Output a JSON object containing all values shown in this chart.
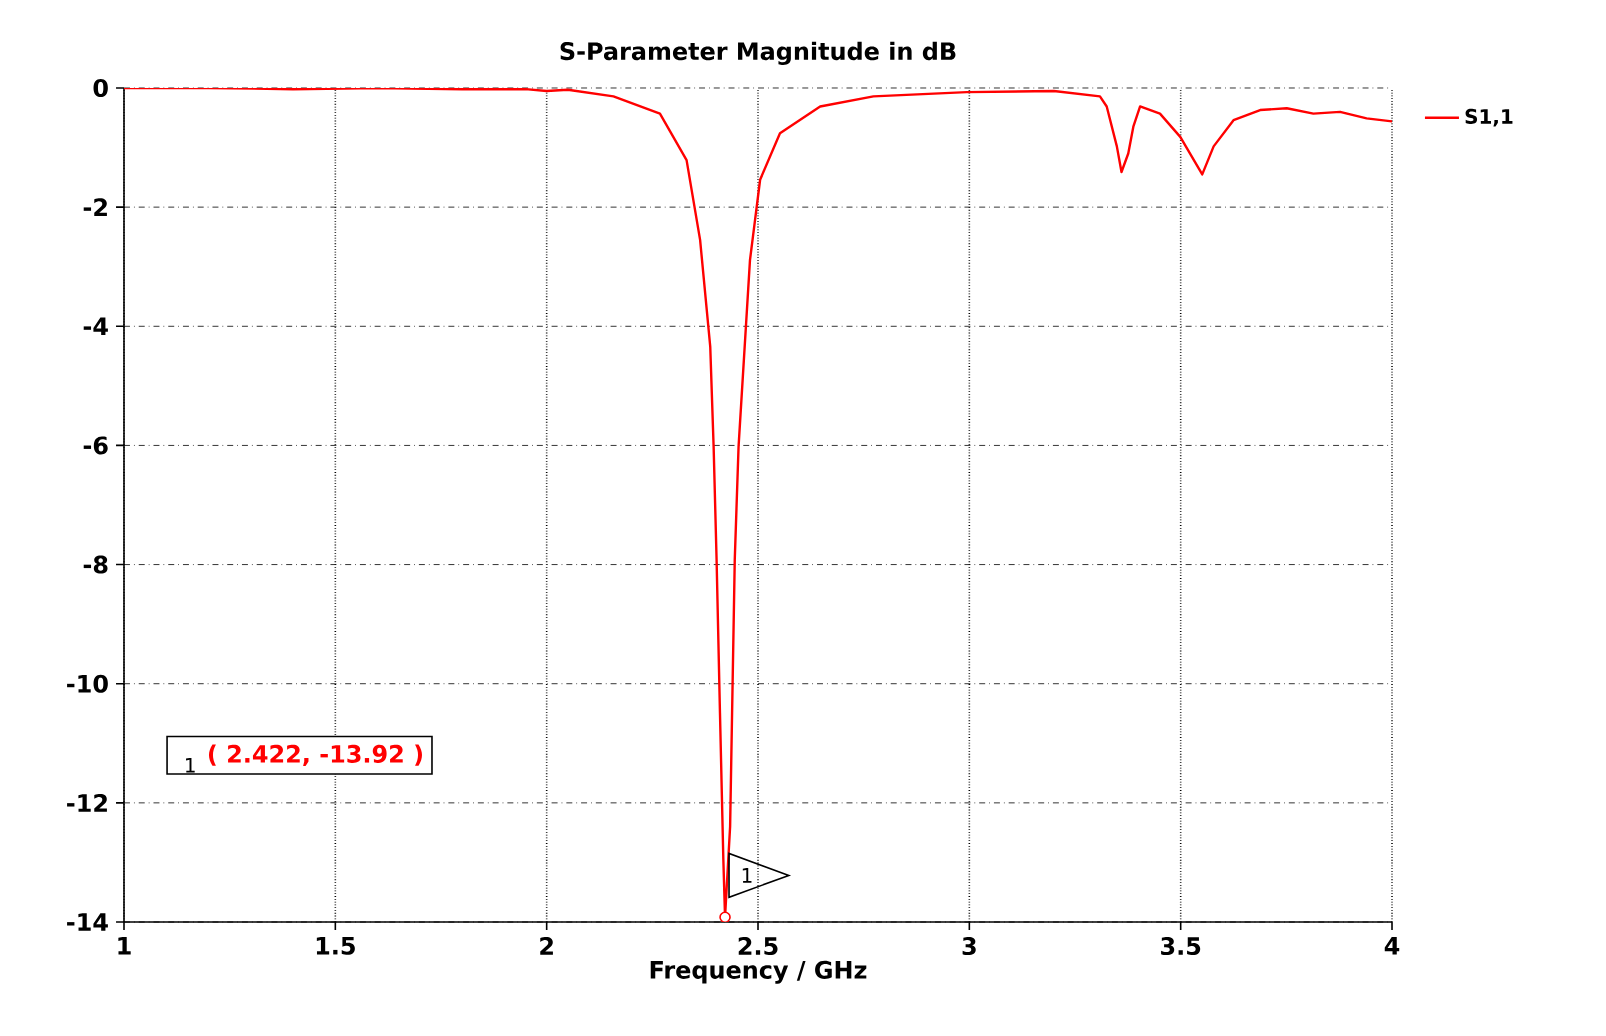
{
  "chart_data": {
    "type": "line",
    "title": "S-Parameter Magnitude in dB",
    "xlabel": "Frequency / GHz",
    "xlim": [
      1,
      4
    ],
    "ylim": [
      -14,
      0
    ],
    "xticks": [
      1,
      1.5,
      2,
      2.5,
      3,
      3.5,
      4
    ],
    "yticks": [
      0,
      -2,
      -4,
      -6,
      -8,
      -10,
      -12,
      -14
    ],
    "grid": true,
    "legend": "top right",
    "marker": "none",
    "line_style": "solid",
    "series": [
      {
        "name": "S1,1",
        "color": "#ff0000",
        "x": [
          1,
          1.2,
          1.4,
          1.6,
          1.8,
          1.95,
          2.0,
          2.05,
          2.158,
          2.268,
          2.331,
          2.363,
          2.387,
          2.395,
          2.402,
          2.41,
          2.418,
          2.422,
          2.434,
          2.445,
          2.454,
          2.481,
          2.505,
          2.552,
          2.647,
          2.773,
          2.994,
          3.2,
          3.309,
          3.325,
          3.349,
          3.36,
          3.376,
          3.388,
          3.404,
          3.451,
          3.499,
          3.551,
          3.578,
          3.625,
          3.688,
          3.751,
          3.814,
          3.877,
          3.94,
          4.0
        ],
        "values": [
          0,
          0,
          -0.02,
          0,
          -0.02,
          -0.02,
          -0.05,
          -0.03,
          -0.14,
          -0.43,
          -1.21,
          -2.55,
          -4.34,
          -6.02,
          -7.92,
          -10.49,
          -12.95,
          -13.92,
          -12.4,
          -7.92,
          -6.02,
          -2.89,
          -1.54,
          -0.76,
          -0.31,
          -0.14,
          -0.07,
          -0.05,
          -0.14,
          -0.31,
          -0.98,
          -1.41,
          -1.1,
          -0.65,
          -0.31,
          -0.43,
          -0.82,
          -1.45,
          -0.98,
          -0.54,
          -0.37,
          -0.34,
          -0.43,
          -0.4,
          -0.51,
          -0.56
        ]
      }
    ],
    "annotations": [
      "( 2.422, -13.92 )",
      "1",
      {
        "text": "1",
        "x": 2.422,
        "y": -13.92
      }
    ]
  }
}
